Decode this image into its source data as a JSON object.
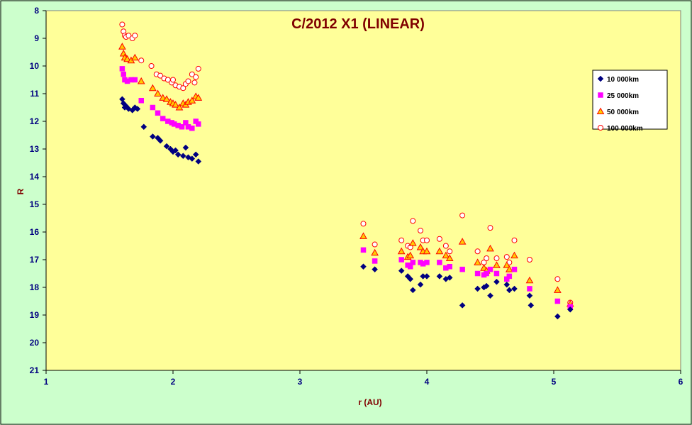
{
  "chart_data": {
    "type": "scatter",
    "title": "C/2012 X1 (LINEAR)",
    "xlabel": "r (AU)",
    "ylabel": "R",
    "xlim": [
      1,
      6
    ],
    "ylim": [
      8,
      21
    ],
    "y_inverted": true,
    "x_ticks": [
      "1",
      "2",
      "3",
      "4",
      "5",
      "6"
    ],
    "y_ticks": [
      "8",
      "9",
      "10",
      "11",
      "12",
      "13",
      "14",
      "15",
      "16",
      "17",
      "18",
      "19",
      "20",
      "21"
    ],
    "grid": false,
    "legend_position": "right",
    "colors": {
      "plot_bg": "#ffff99",
      "page_bg": "#ccffcc",
      "title": "#800000",
      "axis_text": "#000080"
    },
    "series": [
      {
        "name": "10 000km",
        "marker": "diamond",
        "color": "#000080",
        "x": [
          1.6,
          1.61,
          1.62,
          1.63,
          1.65,
          1.68,
          1.7,
          1.72,
          1.77,
          1.84,
          1.88,
          1.9,
          1.95,
          1.98,
          2.0,
          2.02,
          2.04,
          2.08,
          2.1,
          2.12,
          2.15,
          2.18,
          2.2,
          3.5,
          3.59,
          3.8,
          3.85,
          3.87,
          3.89,
          3.95,
          3.97,
          4.0,
          4.1,
          4.15,
          4.18,
          4.28,
          4.4,
          4.45,
          4.47,
          4.5,
          4.55,
          4.63,
          4.65,
          4.69,
          4.81,
          4.82,
          5.03,
          5.13
        ],
        "y": [
          11.2,
          11.35,
          11.5,
          11.45,
          11.55,
          11.6,
          11.5,
          11.55,
          12.2,
          12.55,
          12.6,
          12.7,
          12.9,
          13.0,
          13.1,
          13.05,
          13.2,
          13.25,
          12.95,
          13.3,
          13.35,
          13.2,
          13.45,
          17.25,
          17.35,
          17.4,
          17.6,
          17.7,
          18.1,
          17.9,
          17.6,
          17.6,
          17.6,
          17.7,
          17.65,
          18.65,
          18.05,
          18.0,
          17.95,
          18.3,
          17.8,
          17.9,
          18.1,
          18.05,
          18.3,
          18.65,
          19.05,
          18.8
        ]
      },
      {
        "name": "25 000km",
        "marker": "square",
        "color": "#ff00ff",
        "x": [
          1.6,
          1.61,
          1.62,
          1.64,
          1.67,
          1.7,
          1.75,
          1.84,
          1.88,
          1.92,
          1.96,
          1.99,
          2.01,
          2.04,
          2.07,
          2.1,
          2.12,
          2.15,
          2.18,
          2.2,
          3.5,
          3.59,
          3.8,
          3.85,
          3.87,
          3.89,
          3.95,
          3.97,
          4.0,
          4.1,
          4.15,
          4.18,
          4.28,
          4.4,
          4.45,
          4.47,
          4.5,
          4.55,
          4.63,
          4.65,
          4.69,
          4.81,
          5.03,
          5.13
        ],
        "y": [
          10.1,
          10.3,
          10.5,
          10.55,
          10.5,
          10.5,
          11.25,
          11.5,
          11.7,
          11.9,
          12.0,
          12.05,
          12.1,
          12.15,
          12.2,
          12.05,
          12.2,
          12.25,
          12.0,
          12.1,
          16.65,
          17.05,
          17.0,
          17.2,
          17.25,
          17.1,
          17.1,
          17.15,
          17.1,
          17.1,
          17.3,
          17.25,
          17.35,
          17.5,
          17.55,
          17.5,
          17.35,
          17.5,
          17.7,
          17.6,
          17.35,
          18.05,
          18.5,
          18.7
        ]
      },
      {
        "name": "50 000km",
        "marker": "triangle",
        "color": "#ff0000",
        "fill": "#ffcc00",
        "x": [
          1.6,
          1.61,
          1.62,
          1.64,
          1.67,
          1.7,
          1.75,
          1.84,
          1.88,
          1.92,
          1.95,
          1.98,
          2.0,
          2.02,
          2.05,
          2.08,
          2.1,
          2.12,
          2.15,
          2.18,
          2.2,
          3.5,
          3.59,
          3.8,
          3.85,
          3.87,
          3.89,
          3.95,
          3.97,
          4.0,
          4.1,
          4.15,
          4.18,
          4.28,
          4.4,
          4.45,
          4.47,
          4.5,
          4.55,
          4.63,
          4.65,
          4.69,
          4.81,
          5.03,
          5.13
        ],
        "y": [
          9.3,
          9.55,
          9.7,
          9.75,
          9.8,
          9.7,
          10.55,
          10.8,
          11.0,
          11.15,
          11.2,
          11.3,
          11.35,
          11.4,
          11.5,
          11.35,
          11.4,
          11.3,
          11.25,
          11.1,
          11.15,
          16.15,
          16.75,
          16.7,
          16.9,
          16.85,
          16.4,
          16.55,
          16.7,
          16.7,
          16.7,
          16.85,
          16.95,
          16.35,
          17.1,
          17.3,
          17.4,
          16.6,
          17.2,
          17.2,
          17.35,
          16.85,
          17.75,
          18.1,
          18.6
        ]
      },
      {
        "name": "100 000km",
        "marker": "circle",
        "color": "#ff0000",
        "fill": "#ffffff",
        "x": [
          1.6,
          1.61,
          1.62,
          1.63,
          1.65,
          1.68,
          1.7,
          1.75,
          1.83,
          1.87,
          1.9,
          1.93,
          1.96,
          1.99,
          2.0,
          2.02,
          2.05,
          2.08,
          2.1,
          2.12,
          2.15,
          2.17,
          2.18,
          2.2,
          3.5,
          3.59,
          3.8,
          3.85,
          3.87,
          3.89,
          3.95,
          3.97,
          4.0,
          4.1,
          4.15,
          4.18,
          4.28,
          4.4,
          4.45,
          4.47,
          4.5,
          4.55,
          4.63,
          4.65,
          4.69,
          4.81,
          5.03,
          5.13
        ],
        "y": [
          8.5,
          8.75,
          8.9,
          8.95,
          8.9,
          9.0,
          8.9,
          9.8,
          10.0,
          10.3,
          10.35,
          10.45,
          10.5,
          10.6,
          10.5,
          10.7,
          10.75,
          10.8,
          10.65,
          10.55,
          10.3,
          10.6,
          10.4,
          10.1,
          15.7,
          16.45,
          16.3,
          16.5,
          16.55,
          15.6,
          15.95,
          16.3,
          16.3,
          16.25,
          16.5,
          16.7,
          15.4,
          16.7,
          17.1,
          16.95,
          15.85,
          16.95,
          16.9,
          17.1,
          16.3,
          17.0,
          17.7,
          18.55
        ]
      }
    ]
  }
}
